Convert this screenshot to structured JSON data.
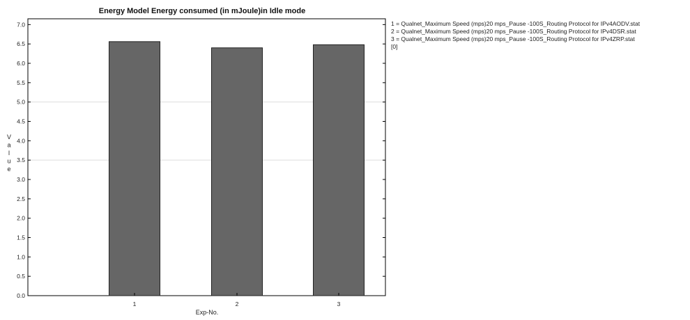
{
  "chart_data": {
    "type": "bar",
    "title": "Energy Model   Energy consumed (in mJoule)in Idle mode",
    "xlabel": "Exp-No.",
    "ylabel": "Value",
    "categories": [
      "1",
      "2",
      "3"
    ],
    "values": [
      6.56,
      6.4,
      6.48
    ],
    "ylim": [
      0,
      7.0
    ],
    "yticks": [
      "0.0",
      "0.5",
      "1.0",
      "1.5",
      "2.0",
      "2.5",
      "3.0",
      "3.5",
      "4.0",
      "4.5",
      "5.0",
      "5.5",
      "6.0",
      "6.5",
      "7.0"
    ],
    "legend_position": "right",
    "legend": [
      "1 = Qualnet_Maximum Speed (mps)20 mps_Pause -100S_Routing Protocol for IPv4AODV.stat",
      "2 = Qualnet_Maximum Speed (mps)20 mps_Pause -100S_Routing Protocol for IPv4DSR.stat",
      "3 = Qualnet_Maximum Speed (mps)20 mps_Pause -100S_Routing Protocol for IPv4ZRP.stat",
      "[0]"
    ],
    "grid_lines_at": [
      5.0,
      3.5
    ],
    "bar_color": "#666666",
    "bar_edge_color": "#222222"
  }
}
